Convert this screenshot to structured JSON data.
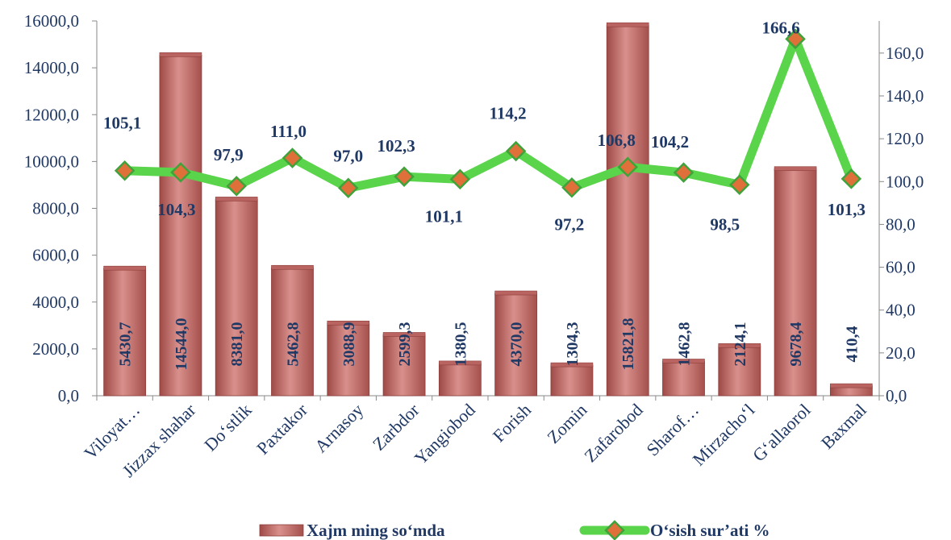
{
  "chart_data": {
    "type": "bar",
    "categories": [
      "Viloyat…",
      "Jizzax shahar",
      "Do‘stlik",
      "Paxtakor",
      "Arnasoy",
      "Zarbdor",
      "Yangiobod",
      "Forish",
      "Zomin",
      "Zafarobod",
      "Sharof…",
      "Mirzacho‘l",
      "G‘allaorol",
      "Baxmal"
    ],
    "series": [
      {
        "name": "Xajm ming so‘mda",
        "type": "bar",
        "axis": "left",
        "color": "#c0504d",
        "values": [
          5430.7,
          14544.0,
          8381.0,
          5462.8,
          3088.9,
          2599.3,
          1380.5,
          4370.0,
          1304.3,
          15821.8,
          1462.8,
          2124.1,
          9678.4,
          410.4
        ],
        "labels": [
          "5430,7",
          "14544,0",
          "8381,0",
          "5462,8",
          "3088,9",
          "2599,3",
          "1380,5",
          "4370,0",
          "1304,3",
          "15821,8",
          "1462,8",
          "2124,1",
          "9678,4",
          "410,4"
        ]
      },
      {
        "name": "O‘sish sur’ati %",
        "type": "line",
        "axis": "right",
        "color": "#5ad44a",
        "marker_color": "#e0703a",
        "values": [
          105.1,
          104.3,
          97.9,
          111.0,
          97.0,
          102.3,
          101.1,
          114.2,
          97.2,
          106.8,
          104.2,
          98.5,
          166.6,
          101.3
        ],
        "labels": [
          "105,1",
          "104,3",
          "97,9",
          "111,0",
          "97,0",
          "102,3",
          "101,1",
          "114,2",
          "97,2",
          "106,8",
          "104,2",
          "98,5",
          "166,6",
          "101,3"
        ]
      }
    ],
    "y_left": {
      "range": [
        0,
        16000
      ],
      "ticks": [
        0,
        2000,
        4000,
        6000,
        8000,
        10000,
        12000,
        14000,
        16000
      ],
      "tick_labels": [
        "0,0",
        "2000,0",
        "4000,0",
        "6000,0",
        "8000,0",
        "10000,0",
        "12000,0",
        "14000,0",
        "16000,0"
      ]
    },
    "y_right": {
      "range": [
        0,
        175
      ],
      "ticks": [
        0,
        20,
        40,
        60,
        80,
        100,
        120,
        140,
        160
      ],
      "tick_labels": [
        "0,0",
        "20,0",
        "40,0",
        "60,0",
        "80,0",
        "100,0",
        "120,0",
        "140,0",
        "160,0"
      ]
    },
    "grid": false,
    "legend_position": "bottom"
  }
}
